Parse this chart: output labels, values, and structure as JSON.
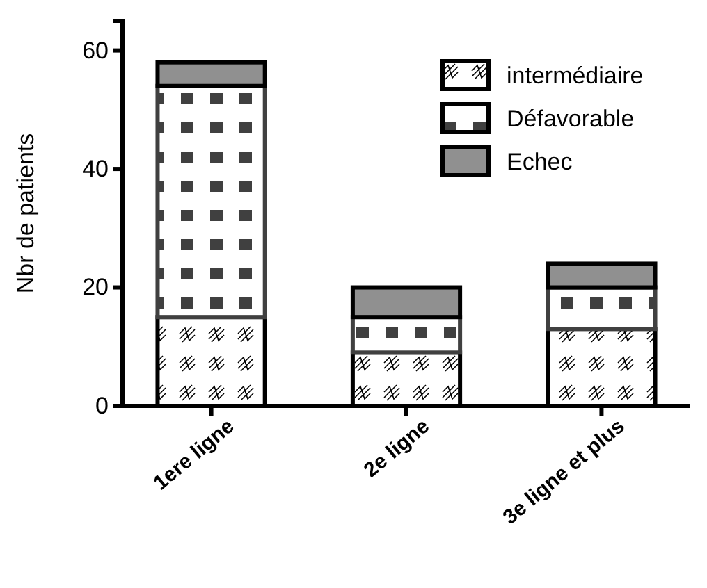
{
  "chart_data": {
    "type": "bar",
    "stacked": true,
    "ylabel": "Nbr de patients",
    "categories": [
      "1ere ligne",
      "2e ligne",
      "3e ligne et plus"
    ],
    "series": [
      {
        "name": "intermédiaire",
        "color": "#000000",
        "values": [
          15,
          9,
          13
        ]
      },
      {
        "name": "Défavorable",
        "color": "#404040",
        "values": [
          39,
          6,
          7
        ]
      },
      {
        "name": "Echec",
        "color": "#909090",
        "values": [
          4,
          5,
          4
        ]
      }
    ],
    "ylim": [
      0,
      65
    ],
    "yticks": [
      0,
      20,
      40,
      60
    ],
    "grid": false,
    "legend": "top right"
  }
}
